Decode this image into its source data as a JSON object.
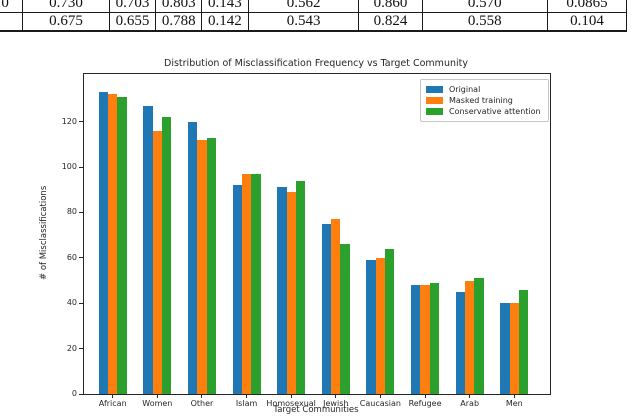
{
  "figure": {
    "table": {
      "rows": [
        [
          "0",
          "0.730",
          "0.703",
          "0.803",
          "0.143",
          "0.562",
          "0.860",
          "0.570",
          "0.0865"
        ],
        [
          "",
          "0.675",
          "0.655",
          "0.788",
          "0.142",
          "0.543",
          "0.824",
          "0.558",
          "0.104"
        ]
      ]
    }
  },
  "chart_data": {
    "type": "bar",
    "title": "Distribution of Misclassification Frequency vs Target Community",
    "xlabel": "Target Communities",
    "ylabel": "# of Misclassifications",
    "categories": [
      "African",
      "Women",
      "Other",
      "Islam",
      "Homosexual",
      "Jewish",
      "Caucasian",
      "Refugee",
      "Arab",
      "Men"
    ],
    "series": [
      {
        "name": "Original",
        "color": "#1f77b4",
        "values": [
          133,
          127,
          120,
          92,
          91,
          75,
          59,
          48,
          45,
          40
        ]
      },
      {
        "name": "Masked training",
        "color": "#ff7f0e",
        "values": [
          132,
          116,
          112,
          97,
          89,
          77,
          60,
          48,
          50,
          40
        ]
      },
      {
        "name": "Conservative attention",
        "color": "#2ca02c",
        "values": [
          131,
          122,
          113,
          97,
          94,
          66,
          64,
          49,
          51,
          46
        ]
      }
    ],
    "ylim": [
      0,
      141
    ],
    "yticks": [
      0,
      20,
      40,
      60,
      80,
      100,
      120
    ],
    "legend_position": "upper right",
    "grid": false
  }
}
